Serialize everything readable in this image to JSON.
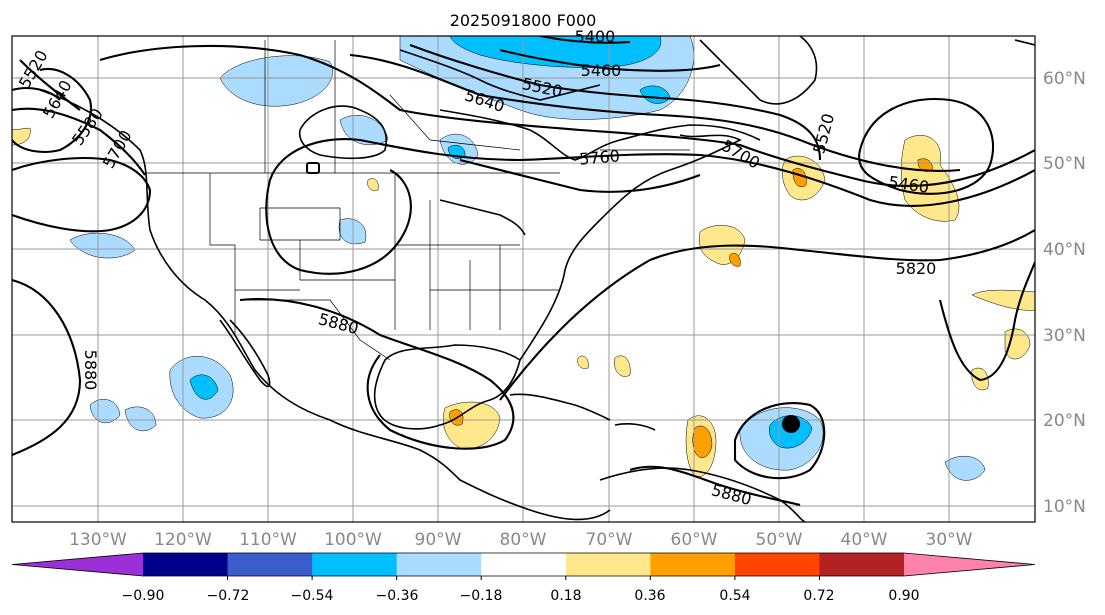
{
  "title": "2025091800 F000",
  "lon_labels": [
    "130°W",
    "120°W",
    "110°W",
    "100°W",
    "90°W",
    "80°W",
    "70°W",
    "60°W",
    "50°W",
    "40°W",
    "30°W"
  ],
  "lat_labels": [
    "60°N",
    "50°N",
    "40°N",
    "30°N",
    "20°N",
    "10°N"
  ],
  "contour_labels": [
    "5400",
    "5460",
    "5520",
    "5640",
    "5760",
    "5700",
    "5520",
    "5460",
    "5820",
    "5880",
    "5880",
    "5880",
    "5700",
    "5580",
    "5640",
    "5520"
  ],
  "colorbar": {
    "tick_labels": [
      "−0.90",
      "−0.72",
      "−0.54",
      "−0.36",
      "−0.18",
      "0.18",
      "0.36",
      "0.54",
      "0.72",
      "0.90"
    ],
    "colors": [
      "#9b30d9",
      "#00008b",
      "#3a5fcd",
      "#00bfff",
      "#abdcff",
      "#ffffff",
      "#ffe88c",
      "#ffa000",
      "#ff4500",
      "#b22222",
      "#ff82ab"
    ]
  },
  "map": {
    "fill_negative_strong": "#00bfff",
    "fill_negative_weak": "#abdcff",
    "fill_positive_weak": "#ffe88c",
    "fill_positive_strong": "#ffa000",
    "storm_marker": "black-dot"
  }
}
